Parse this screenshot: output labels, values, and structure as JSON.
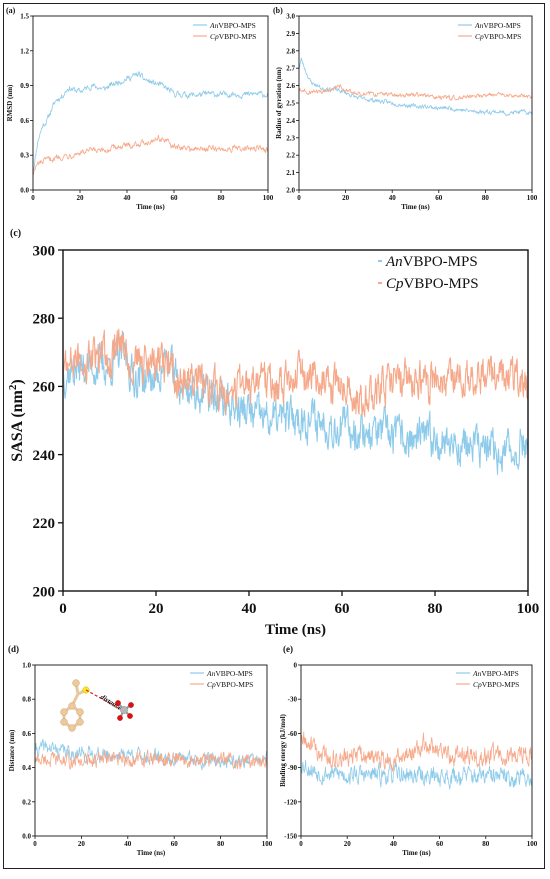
{
  "series_colors": {
    "an": "#8ecbea",
    "cp": "#f6a98a"
  },
  "legend_labels": {
    "an_prefix": "An",
    "cp_prefix": "Cp",
    "suffix": "VBPO-MPS"
  },
  "inset": {
    "label": "distance"
  },
  "chart_data": [
    {
      "panel_label": "(a)",
      "type": "line",
      "xlabel": "Time (ns)",
      "ylabel": "RMSD (nm)",
      "xlim": [
        0,
        100
      ],
      "ylim": [
        0,
        1.5
      ],
      "xticks": [
        0,
        20,
        40,
        60,
        80,
        100
      ],
      "yticks": [
        0.0,
        0.3,
        0.6,
        0.9,
        1.2,
        1.5
      ],
      "ytick_labels": [
        "0.0",
        "0.3",
        "0.6",
        "0.9",
        "1.2",
        "1.5"
      ],
      "legend_position": "top-right",
      "series": [
        {
          "name": "AnVBPO-MPS",
          "x": [
            0,
            2,
            4,
            6,
            8,
            10,
            12,
            15,
            18,
            20,
            25,
            30,
            35,
            40,
            45,
            47,
            50,
            55,
            60,
            65,
            70,
            75,
            80,
            85,
            90,
            95,
            100
          ],
          "values": [
            0.15,
            0.42,
            0.55,
            0.6,
            0.7,
            0.78,
            0.8,
            0.88,
            0.86,
            0.85,
            0.9,
            0.87,
            0.92,
            0.96,
            1.0,
            0.96,
            0.93,
            0.9,
            0.83,
            0.82,
            0.82,
            0.83,
            0.82,
            0.83,
            0.82,
            0.83,
            0.82
          ]
        },
        {
          "name": "CpVBPO-MPS",
          "x": [
            0,
            2,
            5,
            8,
            10,
            15,
            20,
            25,
            30,
            35,
            40,
            45,
            50,
            53,
            55,
            58,
            60,
            65,
            70,
            75,
            80,
            85,
            90,
            95,
            100
          ],
          "values": [
            0.15,
            0.22,
            0.25,
            0.27,
            0.28,
            0.3,
            0.32,
            0.34,
            0.33,
            0.37,
            0.38,
            0.4,
            0.42,
            0.45,
            0.44,
            0.4,
            0.37,
            0.36,
            0.35,
            0.36,
            0.35,
            0.36,
            0.35,
            0.36,
            0.35
          ]
        }
      ]
    },
    {
      "panel_label": "(b)",
      "type": "line",
      "xlabel": "Time (ns)",
      "ylabel": "Radius of gyration (nm)",
      "xlim": [
        0,
        100
      ],
      "ylim": [
        2.0,
        3.0
      ],
      "xticks": [
        0,
        20,
        40,
        60,
        80,
        100
      ],
      "yticks": [
        2.0,
        2.1,
        2.2,
        2.3,
        2.4,
        2.5,
        2.6,
        2.7,
        2.8,
        2.9,
        3.0
      ],
      "ytick_labels": [
        "2.0",
        "2.1",
        "2.2",
        "2.3",
        "2.4",
        "2.5",
        "2.6",
        "2.7",
        "2.8",
        "2.9",
        "3.0"
      ],
      "legend_position": "top-right",
      "series": [
        {
          "name": "AnVBPO-MPS",
          "x": [
            0,
            1,
            3,
            5,
            8,
            10,
            15,
            20,
            25,
            30,
            35,
            40,
            45,
            50,
            55,
            60,
            65,
            70,
            75,
            80,
            85,
            90,
            95,
            100
          ],
          "values": [
            2.7,
            2.75,
            2.68,
            2.62,
            2.6,
            2.58,
            2.58,
            2.56,
            2.53,
            2.52,
            2.51,
            2.5,
            2.49,
            2.48,
            2.48,
            2.47,
            2.47,
            2.46,
            2.45,
            2.45,
            2.45,
            2.44,
            2.45,
            2.44
          ]
        },
        {
          "name": "CpVBPO-MPS",
          "x": [
            0,
            5,
            10,
            15,
            18,
            20,
            25,
            30,
            35,
            40,
            45,
            50,
            55,
            60,
            65,
            70,
            75,
            80,
            85,
            90,
            95,
            100
          ],
          "values": [
            2.58,
            2.56,
            2.57,
            2.58,
            2.6,
            2.57,
            2.56,
            2.55,
            2.55,
            2.55,
            2.54,
            2.55,
            2.54,
            2.53,
            2.53,
            2.53,
            2.54,
            2.54,
            2.55,
            2.54,
            2.54,
            2.54
          ]
        }
      ]
    },
    {
      "panel_label": "(c)",
      "type": "line",
      "xlabel": "Time (ns)",
      "ylabel": "SASA (nm²)",
      "xlim": [
        0,
        100
      ],
      "ylim": [
        200,
        300
      ],
      "xticks": [
        0,
        20,
        40,
        60,
        80,
        100
      ],
      "yticks": [
        200,
        220,
        240,
        260,
        280,
        300
      ],
      "ytick_labels": [
        "200",
        "220",
        "240",
        "260",
        "280",
        "300"
      ],
      "legend_position": "top-right",
      "series": [
        {
          "name": "AnVBPO-MPS",
          "x": [
            0,
            5,
            10,
            13,
            15,
            20,
            22,
            25,
            30,
            35,
            40,
            45,
            50,
            55,
            60,
            65,
            70,
            75,
            80,
            85,
            90,
            95,
            100
          ],
          "values": [
            264,
            266,
            266,
            270,
            263,
            262,
            268,
            260,
            258,
            255,
            252,
            250,
            251,
            250,
            248,
            247,
            246,
            244,
            245,
            243,
            242,
            240,
            244
          ]
        },
        {
          "name": "CpVBPO-MPS",
          "x": [
            0,
            5,
            10,
            13,
            15,
            20,
            25,
            30,
            35,
            40,
            45,
            50,
            55,
            60,
            65,
            70,
            75,
            80,
            85,
            90,
            95,
            100
          ],
          "values": [
            266,
            268,
            268,
            272,
            266,
            267,
            262,
            260,
            258,
            261,
            260,
            263,
            261,
            259,
            257,
            261,
            262,
            261,
            262,
            262,
            263,
            260
          ]
        }
      ]
    },
    {
      "panel_label": "(d)",
      "type": "line",
      "xlabel": "Time (ns)",
      "ylabel": "Distance (nm)",
      "xlim": [
        0,
        100
      ],
      "ylim": [
        0.0,
        1.0
      ],
      "xticks": [
        0,
        20,
        40,
        60,
        80,
        100
      ],
      "yticks": [
        0.0,
        0.2,
        0.4,
        0.6,
        0.8,
        1.0
      ],
      "ytick_labels": [
        "0.0",
        "0.2",
        "0.4",
        "0.6",
        "0.8",
        "1.0"
      ],
      "legend_position": "top-right",
      "series": [
        {
          "name": "AnVBPO-MPS",
          "x": [
            0,
            5,
            10,
            20,
            30,
            40,
            50,
            60,
            70,
            80,
            90,
            100
          ],
          "values": [
            0.5,
            0.52,
            0.5,
            0.48,
            0.47,
            0.48,
            0.46,
            0.45,
            0.45,
            0.44,
            0.44,
            0.45
          ]
        },
        {
          "name": "CpVBPO-MPS",
          "x": [
            0,
            5,
            10,
            20,
            30,
            40,
            50,
            60,
            70,
            80,
            90,
            100
          ],
          "values": [
            0.44,
            0.45,
            0.44,
            0.44,
            0.45,
            0.44,
            0.45,
            0.44,
            0.44,
            0.45,
            0.44,
            0.44
          ]
        }
      ]
    },
    {
      "panel_label": "(e)",
      "type": "line",
      "xlabel": "Time (ns)",
      "ylabel": "Binding energy (kJ/mol)",
      "xlim": [
        0,
        100
      ],
      "ylim": [
        -150,
        0
      ],
      "xticks": [
        0,
        20,
        40,
        60,
        80,
        100
      ],
      "yticks": [
        -150,
        -120,
        -90,
        -60,
        -30,
        0
      ],
      "ytick_labels": [
        "-150",
        "-120",
        "-90",
        "-60",
        "-30",
        "0"
      ],
      "legend_position": "top-right",
      "series": [
        {
          "name": "AnVBPO-MPS",
          "x": [
            0,
            5,
            10,
            20,
            30,
            40,
            50,
            60,
            70,
            80,
            90,
            100
          ],
          "values": [
            -85,
            -92,
            -95,
            -96,
            -97,
            -96,
            -97,
            -98,
            -97,
            -98,
            -99,
            -98
          ]
        },
        {
          "name": "CpVBPO-MPS",
          "x": [
            0,
            5,
            10,
            20,
            30,
            40,
            45,
            50,
            53,
            55,
            60,
            70,
            80,
            90,
            100
          ],
          "values": [
            -65,
            -72,
            -80,
            -82,
            -80,
            -82,
            -80,
            -78,
            -68,
            -72,
            -78,
            -80,
            -80,
            -80,
            -78
          ]
        }
      ]
    }
  ]
}
